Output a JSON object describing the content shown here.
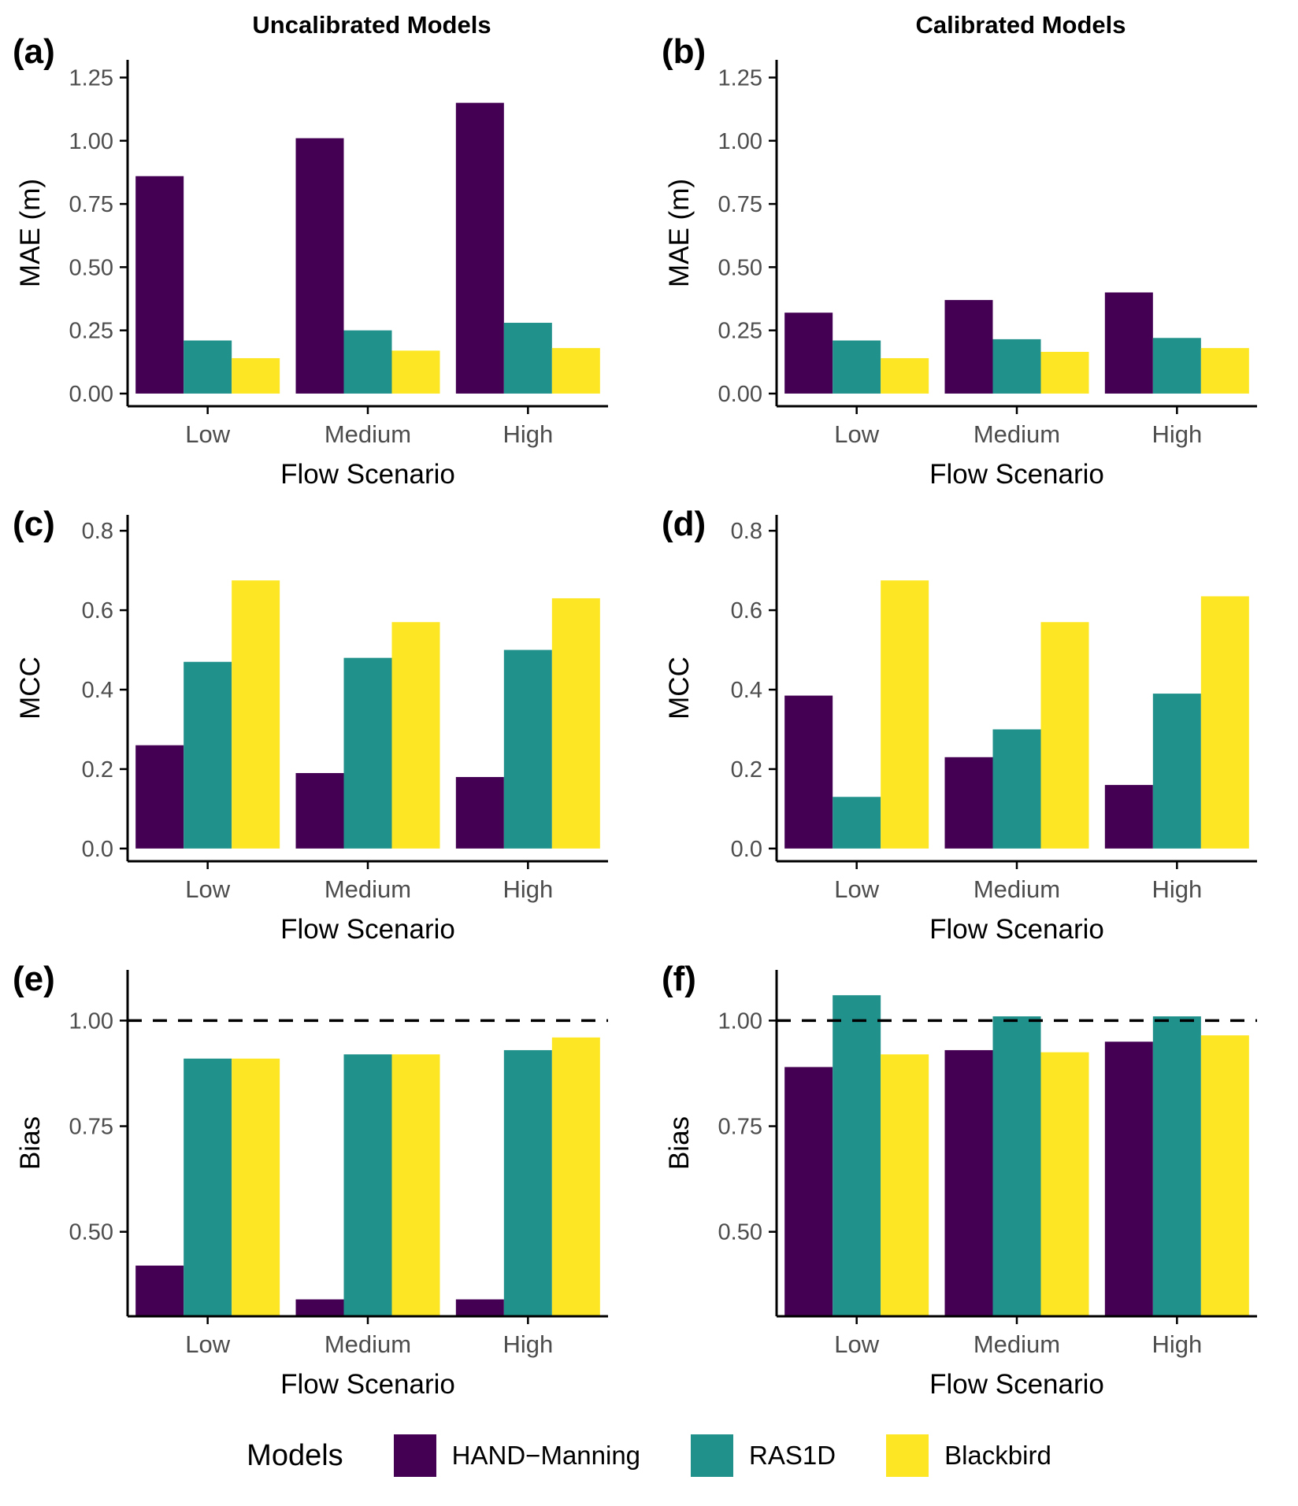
{
  "figure": {
    "column_titles": [
      "Uncalibrated Models",
      "Calibrated Models"
    ]
  },
  "legend": {
    "title": "Models",
    "position": "bottom",
    "entries": [
      {
        "label": "HAND−Manning",
        "color": "#440154"
      },
      {
        "label": "RAS1D",
        "color": "#21918c"
      },
      {
        "label": "Blackbird",
        "color": "#fde725"
      }
    ]
  },
  "chart_data": [
    {
      "panel": "(a)",
      "type": "bar",
      "title": "Uncalibrated Models",
      "xlabel": "Flow Scenario",
      "ylabel": "MAE (m)",
      "categories": [
        "Low",
        "Medium",
        "High"
      ],
      "series": [
        {
          "name": "HAND-Manning",
          "color": "#440154",
          "values": [
            0.86,
            1.01,
            1.15
          ]
        },
        {
          "name": "RAS1D",
          "color": "#21918c",
          "values": [
            0.21,
            0.25,
            0.28
          ]
        },
        {
          "name": "Blackbird",
          "color": "#fde725",
          "values": [
            0.14,
            0.17,
            0.18
          ]
        }
      ],
      "ylim": [
        -0.05,
        1.32
      ],
      "baseline": 0,
      "yticks": [
        0,
        0.25,
        0.5,
        0.75,
        1.0,
        1.25
      ],
      "ytick_labels": [
        "0.00",
        "0.25",
        "0.50",
        "0.75",
        "1.00",
        "1.25"
      ],
      "hline": null,
      "grid": false
    },
    {
      "panel": "(b)",
      "type": "bar",
      "title": "Calibrated Models",
      "xlabel": "Flow Scenario",
      "ylabel": "MAE (m)",
      "categories": [
        "Low",
        "Medium",
        "High"
      ],
      "series": [
        {
          "name": "HAND-Manning",
          "color": "#440154",
          "values": [
            0.32,
            0.37,
            0.4
          ]
        },
        {
          "name": "RAS1D",
          "color": "#21918c",
          "values": [
            0.21,
            0.215,
            0.22
          ]
        },
        {
          "name": "Blackbird",
          "color": "#fde725",
          "values": [
            0.14,
            0.165,
            0.18
          ]
        }
      ],
      "ylim": [
        -0.05,
        1.32
      ],
      "baseline": 0,
      "yticks": [
        0,
        0.25,
        0.5,
        0.75,
        1.0,
        1.25
      ],
      "ytick_labels": [
        "0.00",
        "0.25",
        "0.50",
        "0.75",
        "1.00",
        "1.25"
      ],
      "hline": null,
      "grid": false
    },
    {
      "panel": "(c)",
      "type": "bar",
      "title": "Uncalibrated Models",
      "xlabel": "Flow Scenario",
      "ylabel": "MCC",
      "categories": [
        "Low",
        "Medium",
        "High"
      ],
      "series": [
        {
          "name": "HAND-Manning",
          "color": "#440154",
          "values": [
            0.26,
            0.19,
            0.18
          ]
        },
        {
          "name": "RAS1D",
          "color": "#21918c",
          "values": [
            0.47,
            0.48,
            0.5
          ]
        },
        {
          "name": "Blackbird",
          "color": "#fde725",
          "values": [
            0.675,
            0.57,
            0.63
          ]
        }
      ],
      "ylim": [
        -0.032,
        0.84
      ],
      "baseline": 0,
      "yticks": [
        0,
        0.2,
        0.4,
        0.6,
        0.8
      ],
      "ytick_labels": [
        "0.0",
        "0.2",
        "0.4",
        "0.6",
        "0.8"
      ],
      "hline": null,
      "grid": false
    },
    {
      "panel": "(d)",
      "type": "bar",
      "title": "Calibrated Models",
      "xlabel": "Flow Scenario",
      "ylabel": "MCC",
      "categories": [
        "Low",
        "Medium",
        "High"
      ],
      "series": [
        {
          "name": "HAND-Manning",
          "color": "#440154",
          "values": [
            0.385,
            0.23,
            0.16
          ]
        },
        {
          "name": "RAS1D",
          "color": "#21918c",
          "values": [
            0.13,
            0.3,
            0.39
          ]
        },
        {
          "name": "Blackbird",
          "color": "#fde725",
          "values": [
            0.675,
            0.57,
            0.635
          ]
        }
      ],
      "ylim": [
        -0.032,
        0.84
      ],
      "baseline": 0,
      "yticks": [
        0,
        0.2,
        0.4,
        0.6,
        0.8
      ],
      "ytick_labels": [
        "0.0",
        "0.2",
        "0.4",
        "0.6",
        "0.8"
      ],
      "hline": null,
      "grid": false
    },
    {
      "panel": "(e)",
      "type": "bar",
      "title": "Uncalibrated Models",
      "xlabel": "Flow Scenario",
      "ylabel": "Bias",
      "categories": [
        "Low",
        "Medium",
        "High"
      ],
      "series": [
        {
          "name": "HAND-Manning",
          "color": "#440154",
          "values": [
            0.42,
            0.34,
            0.34
          ]
        },
        {
          "name": "RAS1D",
          "color": "#21918c",
          "values": [
            0.91,
            0.92,
            0.93
          ]
        },
        {
          "name": "Blackbird",
          "color": "#fde725",
          "values": [
            0.91,
            0.92,
            0.96
          ]
        }
      ],
      "ylim": [
        0.3,
        1.12
      ],
      "baseline": 0.3,
      "yticks": [
        0.5,
        0.75,
        1.0
      ],
      "ytick_labels": [
        "0.50",
        "0.75",
        "1.00"
      ],
      "hline": 1.0,
      "grid": false
    },
    {
      "panel": "(f)",
      "type": "bar",
      "title": "Calibrated Models",
      "xlabel": "Flow Scenario",
      "ylabel": "Bias",
      "categories": [
        "Low",
        "Medium",
        "High"
      ],
      "series": [
        {
          "name": "HAND-Manning",
          "color": "#440154",
          "values": [
            0.89,
            0.93,
            0.95
          ]
        },
        {
          "name": "RAS1D",
          "color": "#21918c",
          "values": [
            1.06,
            1.01,
            1.01
          ]
        },
        {
          "name": "Blackbird",
          "color": "#fde725",
          "values": [
            0.92,
            0.925,
            0.965
          ]
        }
      ],
      "ylim": [
        0.3,
        1.12
      ],
      "baseline": 0.3,
      "yticks": [
        0.5,
        0.75,
        1.0
      ],
      "ytick_labels": [
        "0.50",
        "0.75",
        "1.00"
      ],
      "hline": 1.0,
      "grid": false
    }
  ]
}
